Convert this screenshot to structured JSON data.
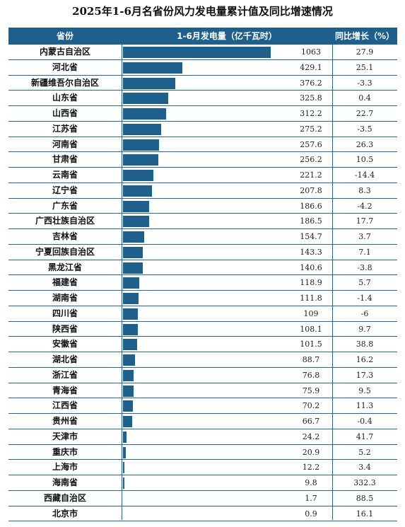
{
  "title": "2025年1-6月名省份风力发电量累计值及同比增速情况",
  "colors": {
    "header_bg": "#1f5f8b",
    "bar": "#1f5f8b",
    "grid": "#2a6690"
  },
  "chart_data": {
    "type": "table",
    "columns": [
      "省份",
      "1-6月发电量（亿千瓦时）",
      "同比增长（%）"
    ],
    "bar_max": 1063,
    "rows": [
      {
        "name": "内蒙古自治区",
        "value": "1063",
        "yoy": "27.9"
      },
      {
        "name": "河北省",
        "value": "429.1",
        "yoy": "25.1"
      },
      {
        "name": "新疆维吾尔自治区",
        "value": "376.2",
        "yoy": "-3.3"
      },
      {
        "name": "山东省",
        "value": "325.8",
        "yoy": "0.4"
      },
      {
        "name": "山西省",
        "value": "312.2",
        "yoy": "22.7"
      },
      {
        "name": "江苏省",
        "value": "275.2",
        "yoy": "-3.5"
      },
      {
        "name": "河南省",
        "value": "257.6",
        "yoy": "26.3"
      },
      {
        "name": "甘肃省",
        "value": "256.2",
        "yoy": "10.5"
      },
      {
        "name": "云南省",
        "value": "221.2",
        "yoy": "-14.4"
      },
      {
        "name": "辽宁省",
        "value": "207.8",
        "yoy": "8.3"
      },
      {
        "name": "广东省",
        "value": "186.6",
        "yoy": "-4.2"
      },
      {
        "name": "广西壮族自治区",
        "value": "186.5",
        "yoy": "17.7"
      },
      {
        "name": "吉林省",
        "value": "154.7",
        "yoy": "3.7"
      },
      {
        "name": "宁夏回族自治区",
        "value": "143.3",
        "yoy": "7.1"
      },
      {
        "name": "黑龙江省",
        "value": "140.6",
        "yoy": "-3.8"
      },
      {
        "name": "福建省",
        "value": "118.9",
        "yoy": "5.7"
      },
      {
        "name": "湖南省",
        "value": "111.8",
        "yoy": "-1.4"
      },
      {
        "name": "四川省",
        "value": "109",
        "yoy": "-6"
      },
      {
        "name": "陕西省",
        "value": "108.1",
        "yoy": "9.7"
      },
      {
        "name": "安徽省",
        "value": "101.5",
        "yoy": "38.8"
      },
      {
        "name": "湖北省",
        "value": "88.7",
        "yoy": "16.2"
      },
      {
        "name": "浙江省",
        "value": "76.8",
        "yoy": "17.3"
      },
      {
        "name": "青海省",
        "value": "75.9",
        "yoy": "9.5"
      },
      {
        "name": "江西省",
        "value": "70.2",
        "yoy": "11.3"
      },
      {
        "name": "贵州省",
        "value": "66.7",
        "yoy": "-0.4"
      },
      {
        "name": "天津市",
        "value": "24.2",
        "yoy": "41.7"
      },
      {
        "name": "重庆市",
        "value": "20.9",
        "yoy": "5.2"
      },
      {
        "name": "上海市",
        "value": "12.2",
        "yoy": "3.4"
      },
      {
        "name": "海南省",
        "value": "9.8",
        "yoy": "332.3"
      },
      {
        "name": "西藏自治区",
        "value": "1.7",
        "yoy": "88.5"
      },
      {
        "name": "北京市",
        "value": "0.9",
        "yoy": "16.1"
      }
    ]
  }
}
